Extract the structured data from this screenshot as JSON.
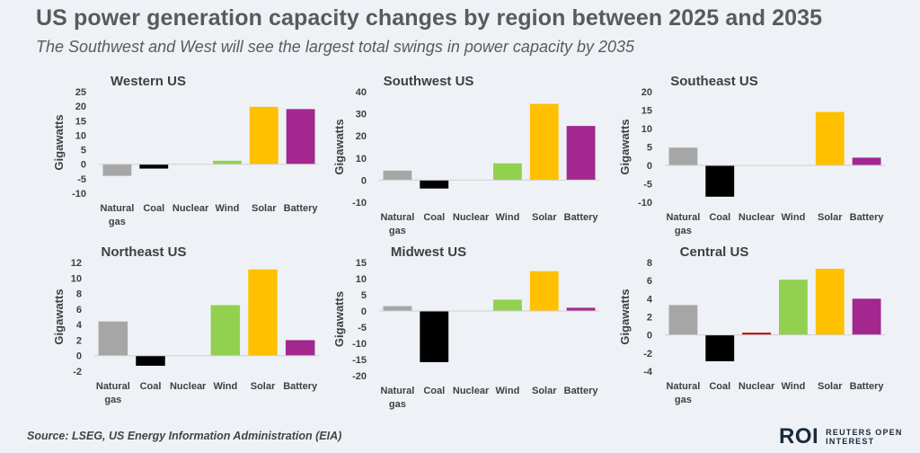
{
  "title": "US power generation capacity changes by region between 2025 and 2035",
  "subtitle": "The Southwest and West will see the largest total swings in power capacity by 2035",
  "source": "Source: LSEG, US Energy Information Administration (EIA)",
  "logo": {
    "mark": "ROI",
    "line1": "REUTERS OPEN",
    "line2": "INTEREST"
  },
  "colors": {
    "Natural gas": "#a6a6a6",
    "Coal": "#000000",
    "Nuclear": "#c00000",
    "Wind": "#92d050",
    "Solar": "#ffc000",
    "Battery": "#a3278f"
  },
  "chart_data": [
    {
      "type": "bar",
      "title": "Western US",
      "ylabel": "Gigawatts",
      "categories": [
        "Natural gas",
        "Coal",
        "Nuclear",
        "Wind",
        "Solar",
        "Battery"
      ],
      "category_labels": [
        [
          "Natural",
          "gas"
        ],
        [
          "Coal"
        ],
        [
          "Nuclear"
        ],
        [
          "Wind"
        ],
        [
          "Solar"
        ],
        [
          "Battery"
        ]
      ],
      "values": [
        -4,
        -1.5,
        0,
        1.2,
        19.8,
        19
      ],
      "ylim": [
        -10,
        25
      ],
      "yticks": [
        -10,
        -5,
        0,
        5,
        10,
        15,
        20,
        25
      ]
    },
    {
      "type": "bar",
      "title": "Southwest US",
      "ylabel": "Gigawatts",
      "categories": [
        "Natural gas",
        "Coal",
        "Nuclear",
        "Wind",
        "Solar",
        "Battery"
      ],
      "category_labels": [
        [
          "Natural",
          "gas"
        ],
        [
          "Coal"
        ],
        [
          "Nuclear"
        ],
        [
          "Wind"
        ],
        [
          "Solar"
        ],
        [
          "Battery"
        ]
      ],
      "values": [
        4.3,
        -3.8,
        0,
        7.6,
        34.5,
        24.5
      ],
      "ylim": [
        -10,
        40
      ],
      "yticks": [
        -10,
        0,
        10,
        20,
        30,
        40
      ]
    },
    {
      "type": "bar",
      "title": "Southeast US",
      "ylabel": "Gigawatts",
      "categories": [
        "Natural gas",
        "Coal",
        "Nuclear",
        "Wind",
        "Solar",
        "Battery"
      ],
      "category_labels": [
        [
          "Natural",
          "gas"
        ],
        [
          "Coal"
        ],
        [
          "Nuclear"
        ],
        [
          "Wind"
        ],
        [
          "Solar"
        ],
        [
          "Battery"
        ]
      ],
      "values": [
        4.8,
        -8.5,
        0,
        0,
        14.5,
        2.1
      ],
      "ylim": [
        -10,
        20
      ],
      "yticks": [
        -10,
        -5,
        0,
        5,
        10,
        15,
        20
      ]
    },
    {
      "type": "bar",
      "title": "Northeast US",
      "ylabel": "Gigawatts",
      "categories": [
        "Natural gas",
        "Coal",
        "Nuclear",
        "Wind",
        "Solar",
        "Battery"
      ],
      "category_labels": [
        [
          "Natural",
          "gas"
        ],
        [
          "Coal"
        ],
        [
          "Nuclear"
        ],
        [
          "Wind"
        ],
        [
          "Solar"
        ],
        [
          "Battery"
        ]
      ],
      "values": [
        4.4,
        -1.3,
        0,
        6.5,
        11.1,
        2
      ],
      "ylim": [
        -2,
        12
      ],
      "yticks": [
        -2,
        0,
        2,
        4,
        6,
        8,
        10,
        12
      ]
    },
    {
      "type": "bar",
      "title": "Midwest US",
      "ylabel": "Gigawatts",
      "categories": [
        "Natural gas",
        "Coal",
        "Nuclear",
        "Wind",
        "Solar",
        "Battery"
      ],
      "category_labels": [
        [
          "Natural",
          "gas"
        ],
        [
          "Coal"
        ],
        [
          "Nuclear"
        ],
        [
          "Wind"
        ],
        [
          "Solar"
        ],
        [
          "Battery"
        ]
      ],
      "values": [
        1.5,
        -15.8,
        0,
        3.5,
        12.3,
        1
      ],
      "ylim": [
        -20,
        15
      ],
      "yticks": [
        -20,
        -15,
        -10,
        -5,
        0,
        5,
        10,
        15
      ]
    },
    {
      "type": "bar",
      "title": "Central US",
      "ylabel": "Gigawatts",
      "categories": [
        "Natural gas",
        "Coal",
        "Nuclear",
        "Wind",
        "Solar",
        "Battery"
      ],
      "category_labels": [
        [
          "Natural",
          "gas"
        ],
        [
          "Coal"
        ],
        [
          "Nuclear"
        ],
        [
          "Wind"
        ],
        [
          "Solar"
        ],
        [
          "Battery"
        ]
      ],
      "values": [
        3.3,
        -2.9,
        0.25,
        6.1,
        7.3,
        4
      ],
      "ylim": [
        -4,
        8
      ],
      "yticks": [
        -4,
        -2,
        0,
        2,
        4,
        6,
        8
      ]
    }
  ]
}
